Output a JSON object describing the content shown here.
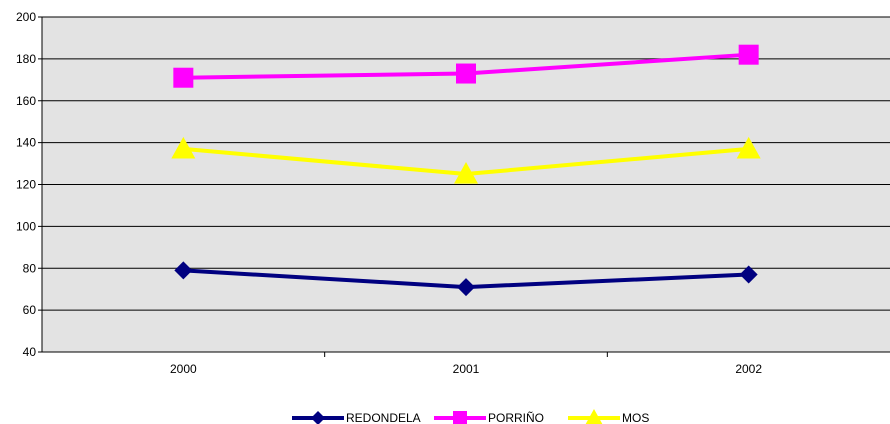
{
  "chart_data": {
    "type": "line",
    "categories": [
      "2000",
      "2001",
      "2002"
    ],
    "ylim": [
      40,
      200
    ],
    "yticks": [
      40,
      60,
      80,
      100,
      120,
      140,
      160,
      180,
      200
    ],
    "grid": true,
    "legend_position": "bottom",
    "plot_background": "#e3e3e3",
    "series": [
      {
        "name": "REDONDELA",
        "values": [
          79,
          71,
          77
        ],
        "color": "#000080",
        "marker": "diamond"
      },
      {
        "name": "PORRIÑO",
        "values": [
          171,
          173,
          182
        ],
        "color": "#ff00ff",
        "marker": "square"
      },
      {
        "name": "MOS",
        "values": [
          137,
          125,
          137
        ],
        "color": "#ffff00",
        "marker": "triangle"
      }
    ]
  }
}
